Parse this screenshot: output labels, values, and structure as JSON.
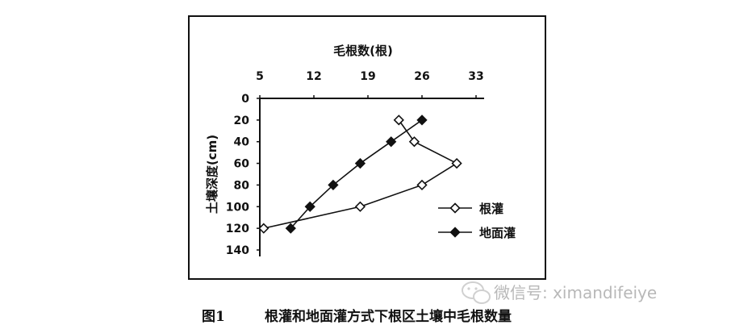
{
  "chart_data": {
    "type": "line",
    "x_axis_title": "毛根数(根)",
    "y_axis_title": "土壤深度(cm)",
    "x_ticks": [
      5,
      12,
      19,
      26,
      33
    ],
    "y_ticks": [
      0,
      20,
      40,
      60,
      80,
      100,
      120,
      140
    ],
    "xlim": [
      5,
      33
    ],
    "ylim": [
      0,
      140
    ],
    "x_axis_position": "top",
    "y_axis_reversed": true,
    "grid": false,
    "legend_position": "right",
    "series": [
      {
        "name": "根灌",
        "marker": "hollow-diamond",
        "points": [
          {
            "x": 23,
            "y": 20
          },
          {
            "x": 25,
            "y": 40
          },
          {
            "x": 30.5,
            "y": 60
          },
          {
            "x": 26,
            "y": 80
          },
          {
            "x": 18,
            "y": 100
          },
          {
            "x": 5.5,
            "y": 120
          }
        ]
      },
      {
        "name": "地面灌",
        "marker": "filled-diamond",
        "points": [
          {
            "x": 26,
            "y": 20
          },
          {
            "x": 22,
            "y": 40
          },
          {
            "x": 18,
            "y": 60
          },
          {
            "x": 14.5,
            "y": 80
          },
          {
            "x": 11.5,
            "y": 100
          },
          {
            "x": 9,
            "y": 120
          }
        ]
      }
    ]
  },
  "caption": {
    "label": "图1",
    "text": "根灌和地面灌方式下根区土壤中毛根数量"
  },
  "watermark": {
    "text": "微信号: ximandifeiye"
  }
}
